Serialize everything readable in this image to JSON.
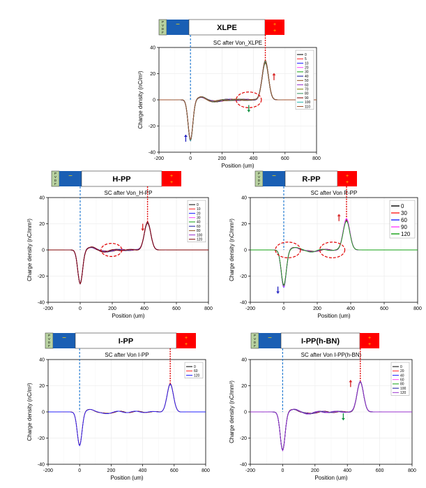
{
  "colors": {
    "pvdf_bg": "#b8d2a0",
    "neg_electrode": "#1a5fb4",
    "pos_electrode": "#ff0000",
    "pos_sign": "#ffd800",
    "ground_line": "#2a7fd4",
    "peak_line": "#e00000",
    "circle": "#e00000",
    "grid": "#e6e6e6",
    "up_arrow": "#d62020",
    "down_arrow_blue": "#2020c0",
    "down_arrow_green": "#109040"
  },
  "electrode_labels": {
    "pvdf": [
      "P",
      "V",
      "D",
      "F"
    ],
    "neg": "−",
    "pos": "+"
  },
  "chart_data": [
    {
      "type": "line",
      "sample": "XLPE",
      "title": "SC after Von_XLPE",
      "xlabel": "Position (um)",
      "ylabel": "Charge density (nC/m³)",
      "xlim": [
        -200,
        800
      ],
      "ylim": [
        -40,
        40
      ],
      "xticks": [
        -200,
        0,
        200,
        400,
        600,
        800
      ],
      "yticks": [
        -40,
        -20,
        0,
        20,
        40
      ],
      "legend_position": "top-right",
      "legend_font": "small",
      "series": [
        {
          "name": "0",
          "color": "#000000",
          "neg": -30.5,
          "pos": 28.0
        },
        {
          "name": "5",
          "color": "#ff2020",
          "neg": -31.0,
          "pos": 28.8
        },
        {
          "name": "10",
          "color": "#2020ff",
          "neg": -31.3,
          "pos": 29.3
        },
        {
          "name": "20",
          "color": "#ff40ff",
          "neg": -31.1,
          "pos": 29.6
        },
        {
          "name": "30",
          "color": "#10a010",
          "neg": -30.8,
          "pos": 29.0
        },
        {
          "name": "40",
          "color": "#1010a0",
          "neg": -31.5,
          "pos": 30.0
        },
        {
          "name": "50",
          "color": "#8b4513",
          "neg": -31.0,
          "pos": 29.5
        },
        {
          "name": "60",
          "color": "#9a32cd",
          "neg": -30.6,
          "pos": 29.2
        },
        {
          "name": "70",
          "color": "#808000",
          "neg": -30.9,
          "pos": 28.6
        },
        {
          "name": "80",
          "color": "#2e8b57",
          "neg": -31.2,
          "pos": 29.9
        },
        {
          "name": "90",
          "color": "#800000",
          "neg": -30.7,
          "pos": 29.1
        },
        {
          "name": "100",
          "color": "#20b2aa",
          "neg": -31.0,
          "pos": 29.4
        },
        {
          "name": "110",
          "color": "#a0522d",
          "neg": -30.4,
          "pos": 30.2
        }
      ],
      "neg_peak_x": 0,
      "pos_peak_x": 475,
      "annotations": [
        {
          "type": "ellipse",
          "cx": 370,
          "cy": 0,
          "rx": 80,
          "ry": 6
        },
        {
          "type": "arrow-up",
          "x": 530,
          "y": 15,
          "color": "#d62020"
        },
        {
          "type": "arrow-up",
          "x": -30,
          "y": -32,
          "color": "#2020c0"
        },
        {
          "type": "arrow-down",
          "x": 370,
          "y": -4,
          "color": "#109040"
        }
      ]
    },
    {
      "type": "line",
      "sample": "H-PP",
      "title": "SC after Von_H-PP",
      "xlabel": "Position (um)",
      "ylabel": "Charge density (nC/mm³)",
      "xlim": [
        -200,
        800
      ],
      "ylim": [
        -40,
        40
      ],
      "xticks": [
        -200,
        0,
        200,
        400,
        600,
        800
      ],
      "yticks": [
        -40,
        -20,
        0,
        20,
        40
      ],
      "legend_position": "top-right",
      "legend_font": "small",
      "series": [
        {
          "name": "0",
          "color": "#000000",
          "neg": -25.5,
          "pos": 20.5
        },
        {
          "name": "10",
          "color": "#ff2020",
          "neg": -25.8,
          "pos": 20.8
        },
        {
          "name": "20",
          "color": "#2020ff",
          "neg": -26.0,
          "pos": 20.9
        },
        {
          "name": "30",
          "color": "#ff40ff",
          "neg": -25.7,
          "pos": 21.0
        },
        {
          "name": "40",
          "color": "#10a010",
          "neg": -25.9,
          "pos": 20.7
        },
        {
          "name": "60",
          "color": "#1010a0",
          "neg": -26.1,
          "pos": 21.1
        },
        {
          "name": "80",
          "color": "#8b4513",
          "neg": -25.6,
          "pos": 20.6
        },
        {
          "name": "100",
          "color": "#9a32cd",
          "neg": -25.9,
          "pos": 20.9
        },
        {
          "name": "120",
          "color": "#800000",
          "neg": -26.0,
          "pos": 21.2
        }
      ],
      "neg_peak_x": 0,
      "pos_peak_x": 420,
      "annotations": [
        {
          "type": "ellipse",
          "cx": 195,
          "cy": 0,
          "rx": 65,
          "ry": 5
        },
        {
          "type": "arrow-down",
          "x": 390,
          "y": 20,
          "color": "#d62020"
        }
      ]
    },
    {
      "type": "line",
      "sample": "R-PP",
      "title": "SC after Von R-PP",
      "xlabel": "Position (um)",
      "ylabel": "Charge density (nC/mm³)",
      "xlim": [
        -200,
        800
      ],
      "ylim": [
        -40,
        40
      ],
      "xticks": [
        -200,
        0,
        200,
        400,
        600,
        800
      ],
      "yticks": [
        -40,
        -20,
        0,
        20,
        40
      ],
      "legend_position": "top-right",
      "legend_font": "large",
      "series": [
        {
          "name": "0",
          "color": "#000000",
          "neg": -27.0,
          "pos": 22.5
        },
        {
          "name": "30",
          "color": "#ff2020",
          "neg": -28.0,
          "pos": 23.0
        },
        {
          "name": "60",
          "color": "#2020ff",
          "neg": -28.8,
          "pos": 23.6
        },
        {
          "name": "90",
          "color": "#ff40ff",
          "neg": -28.3,
          "pos": 24.0
        },
        {
          "name": "120",
          "color": "#10a010",
          "neg": -27.5,
          "pos": 22.0
        }
      ],
      "neg_peak_x": 0,
      "pos_peak_x": 375,
      "annotations": [
        {
          "type": "ellipse",
          "cx": 25,
          "cy": 0,
          "rx": 75,
          "ry": 6
        },
        {
          "type": "ellipse",
          "cx": 290,
          "cy": 0,
          "rx": 75,
          "ry": 6
        },
        {
          "type": "arrow-up",
          "x": 330,
          "y": 22,
          "color": "#d62020"
        },
        {
          "type": "arrow-down",
          "x": -35,
          "y": -28,
          "color": "#2020c0"
        }
      ]
    },
    {
      "type": "line",
      "sample": "I-PP",
      "title": "SC after Von I-PP",
      "xlabel": "Position (um)",
      "ylabel": "Charge density (nC/m³)",
      "xlim": [
        -200,
        800
      ],
      "ylim": [
        -40,
        40
      ],
      "xticks": [
        -200,
        0,
        200,
        400,
        600,
        800
      ],
      "yticks": [
        -40,
        -20,
        0,
        20,
        40
      ],
      "legend_position": "top-right",
      "legend_font": "small",
      "series": [
        {
          "name": "0",
          "color": "#000000",
          "neg": -25.5,
          "pos": 21.0
        },
        {
          "name": "60",
          "color": "#ff2020",
          "neg": -25.8,
          "pos": 21.5
        },
        {
          "name": "120",
          "color": "#2020ff",
          "neg": -26.0,
          "pos": 21.2
        }
      ],
      "neg_peak_x": 0,
      "pos_peak_x": 575,
      "annotations": []
    },
    {
      "type": "line",
      "sample": "I-PP(h-BN)",
      "title": "SC after Von I-PP(h-BN)",
      "xlabel": "Position (um)",
      "ylabel": "Charge density (nC/mm³)",
      "xlim": [
        -200,
        800
      ],
      "ylim": [
        -40,
        40
      ],
      "xticks": [
        -200,
        0,
        200,
        400,
        600,
        800
      ],
      "yticks": [
        -40,
        -20,
        0,
        20,
        40
      ],
      "legend_position": "top-right",
      "legend_font": "small",
      "series": [
        {
          "name": "0",
          "color": "#000000",
          "neg": -29.0,
          "pos": 22.5
        },
        {
          "name": "20",
          "color": "#ff2020",
          "neg": -29.3,
          "pos": 22.8
        },
        {
          "name": "40",
          "color": "#2020ff",
          "neg": -29.5,
          "pos": 23.0
        },
        {
          "name": "60",
          "color": "#ff40ff",
          "neg": -29.2,
          "pos": 22.6
        },
        {
          "name": "80",
          "color": "#10a010",
          "neg": -29.4,
          "pos": 22.9
        },
        {
          "name": "100",
          "color": "#1010a0",
          "neg": -29.6,
          "pos": 23.2
        },
        {
          "name": "120",
          "color": "#9a32cd",
          "neg": -29.8,
          "pos": 23.4
        }
      ],
      "neg_peak_x": 0,
      "pos_peak_x": 480,
      "annotations": [
        {
          "type": "arrow-up",
          "x": 420,
          "y": 19,
          "color": "#d62020"
        },
        {
          "type": "arrow-down",
          "x": 375,
          "y": -1,
          "color": "#109040"
        }
      ]
    }
  ]
}
